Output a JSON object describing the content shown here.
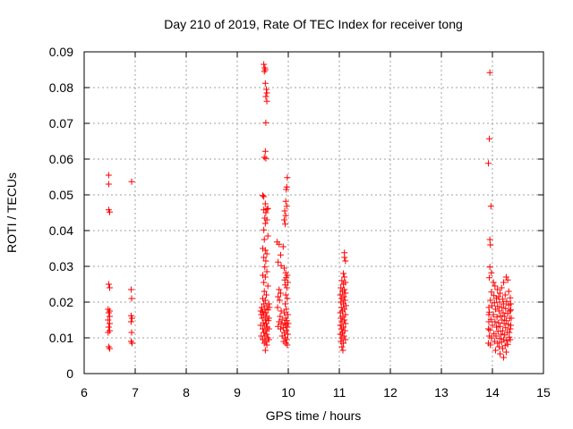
{
  "chart_data": {
    "type": "scatter",
    "title": "Day 210 of 2019, Rate Of TEC Index for receiver tong",
    "xlabel": "GPS time / hours",
    "ylabel": "ROTI / TECUs",
    "xlim": [
      6,
      15
    ],
    "ylim": [
      0,
      0.09
    ],
    "xticks": [
      6,
      7,
      8,
      9,
      10,
      11,
      12,
      13,
      14,
      15
    ],
    "yticks": [
      0,
      0.01,
      0.02,
      0.03,
      0.04,
      0.05,
      0.06,
      0.07,
      0.08,
      0.09
    ],
    "xtick_labels": [
      "6",
      "7",
      "8",
      "9",
      "10",
      "11",
      "12",
      "13",
      "14",
      "15"
    ],
    "ytick_labels": [
      "0",
      "0.01",
      "0.02",
      "0.03",
      "0.04",
      "0.05",
      "0.06",
      "0.07",
      "0.08",
      "0.09"
    ],
    "grid": true,
    "marker": "+",
    "color": "#ff0000",
    "series": [
      {
        "name": "ROTI",
        "points": [
          [
            6.48,
            0.0555
          ],
          [
            6.48,
            0.053
          ],
          [
            6.48,
            0.0458
          ],
          [
            6.5,
            0.0452
          ],
          [
            6.48,
            0.025
          ],
          [
            6.5,
            0.024
          ],
          [
            6.47,
            0.018
          ],
          [
            6.5,
            0.0175
          ],
          [
            6.48,
            0.017
          ],
          [
            6.5,
            0.016
          ],
          [
            6.47,
            0.015
          ],
          [
            6.5,
            0.014
          ],
          [
            6.48,
            0.013
          ],
          [
            6.5,
            0.012
          ],
          [
            6.47,
            0.0115
          ],
          [
            6.48,
            0.0075
          ],
          [
            6.5,
            0.007
          ],
          [
            6.93,
            0.0537
          ],
          [
            6.92,
            0.0235
          ],
          [
            6.93,
            0.021
          ],
          [
            6.92,
            0.0162
          ],
          [
            6.94,
            0.0155
          ],
          [
            6.92,
            0.0145
          ],
          [
            6.93,
            0.0115
          ],
          [
            6.92,
            0.009
          ],
          [
            6.94,
            0.0085
          ],
          [
            9.52,
            0.0865
          ],
          [
            9.54,
            0.0855
          ],
          [
            9.55,
            0.085
          ],
          [
            9.53,
            0.0845
          ],
          [
            9.55,
            0.0812
          ],
          [
            9.57,
            0.0795
          ],
          [
            9.58,
            0.0785
          ],
          [
            9.56,
            0.0775
          ],
          [
            9.58,
            0.0762
          ],
          [
            9.56,
            0.0702
          ],
          [
            9.55,
            0.0622
          ],
          [
            9.53,
            0.0605
          ],
          [
            9.56,
            0.0602
          ],
          [
            9.5,
            0.0498
          ],
          [
            9.52,
            0.0495
          ],
          [
            9.55,
            0.0475
          ],
          [
            9.58,
            0.046
          ],
          [
            9.52,
            0.0458
          ],
          [
            9.56,
            0.045
          ],
          [
            9.6,
            0.0462
          ],
          [
            9.54,
            0.0435
          ],
          [
            9.58,
            0.043
          ],
          [
            9.55,
            0.042
          ],
          [
            9.52,
            0.0402
          ],
          [
            9.6,
            0.0385
          ],
          [
            9.53,
            0.0375
          ],
          [
            9.5,
            0.035
          ],
          [
            9.55,
            0.0345
          ],
          [
            9.58,
            0.0335
          ],
          [
            9.52,
            0.0325
          ],
          [
            9.56,
            0.0315
          ],
          [
            9.54,
            0.0298
          ],
          [
            9.58,
            0.0285
          ],
          [
            9.5,
            0.0275
          ],
          [
            9.55,
            0.027
          ],
          [
            9.52,
            0.0255
          ],
          [
            9.6,
            0.0245
          ],
          [
            9.53,
            0.023
          ],
          [
            9.57,
            0.022
          ],
          [
            9.5,
            0.021
          ],
          [
            9.55,
            0.0205
          ],
          [
            9.52,
            0.0195
          ],
          [
            9.58,
            0.019
          ],
          [
            9.48,
            0.0185
          ],
          [
            9.54,
            0.018
          ],
          [
            9.6,
            0.0178
          ],
          [
            9.5,
            0.0172
          ],
          [
            9.56,
            0.017
          ],
          [
            9.52,
            0.0165
          ],
          [
            9.58,
            0.016
          ],
          [
            9.49,
            0.0155
          ],
          [
            9.55,
            0.015
          ],
          [
            9.61,
            0.0148
          ],
          [
            9.51,
            0.0142
          ],
          [
            9.57,
            0.014
          ],
          [
            9.53,
            0.0135
          ],
          [
            9.59,
            0.013
          ],
          [
            9.5,
            0.0125
          ],
          [
            9.56,
            0.012
          ],
          [
            9.52,
            0.0115
          ],
          [
            9.58,
            0.011
          ],
          [
            9.54,
            0.0105
          ],
          [
            9.6,
            0.01
          ],
          [
            9.5,
            0.0095
          ],
          [
            9.56,
            0.009
          ],
          [
            9.53,
            0.0085
          ],
          [
            9.58,
            0.008
          ],
          [
            9.55,
            0.0065
          ],
          [
            9.62,
            0.0195
          ],
          [
            9.63,
            0.0185
          ],
          [
            9.46,
            0.0175
          ],
          [
            9.47,
            0.0165
          ],
          [
            9.62,
            0.0155
          ],
          [
            9.46,
            0.0135
          ],
          [
            9.62,
            0.0125
          ],
          [
            9.47,
            0.0105
          ],
          [
            9.62,
            0.0095
          ],
          [
            9.98,
            0.0548
          ],
          [
            9.97,
            0.0522
          ],
          [
            9.96,
            0.0515
          ],
          [
            9.95,
            0.0482
          ],
          [
            9.97,
            0.0468
          ],
          [
            9.93,
            0.0455
          ],
          [
            9.95,
            0.0442
          ],
          [
            9.92,
            0.043
          ],
          [
            9.94,
            0.0418
          ],
          [
            9.78,
            0.0368
          ],
          [
            9.82,
            0.0362
          ],
          [
            9.9,
            0.0355
          ],
          [
            9.85,
            0.0332
          ],
          [
            9.8,
            0.0312
          ],
          [
            9.86,
            0.0302
          ],
          [
            9.92,
            0.0295
          ],
          [
            9.95,
            0.0282
          ],
          [
            9.98,
            0.0275
          ],
          [
            9.96,
            0.0268
          ],
          [
            9.93,
            0.0262
          ],
          [
            9.99,
            0.0255
          ],
          [
            9.94,
            0.0248
          ],
          [
            9.97,
            0.024
          ],
          [
            9.82,
            0.0235
          ],
          [
            9.85,
            0.0225
          ],
          [
            9.95,
            0.022
          ],
          [
            9.8,
            0.0215
          ],
          [
            9.98,
            0.021
          ],
          [
            9.83,
            0.0205
          ],
          [
            9.94,
            0.0195
          ],
          [
            9.79,
            0.0185
          ],
          [
            9.96,
            0.018
          ],
          [
            9.86,
            0.0175
          ],
          [
            9.92,
            0.017
          ],
          [
            9.99,
            0.0165
          ],
          [
            9.84,
            0.016
          ],
          [
            9.95,
            0.0155
          ],
          [
            9.88,
            0.015
          ],
          [
            9.97,
            0.0148
          ],
          [
            9.82,
            0.0145
          ],
          [
            9.93,
            0.0142
          ],
          [
            10.0,
            0.014
          ],
          [
            9.86,
            0.0138
          ],
          [
            9.95,
            0.0135
          ],
          [
            9.8,
            0.0132
          ],
          [
            9.98,
            0.013
          ],
          [
            9.9,
            0.0128
          ],
          [
            9.85,
            0.0125
          ],
          [
            9.96,
            0.012
          ],
          [
            9.92,
            0.0115
          ],
          [
            9.99,
            0.011
          ],
          [
            9.88,
            0.0105
          ],
          [
            9.94,
            0.01
          ],
          [
            9.97,
            0.0095
          ],
          [
            9.91,
            0.009
          ],
          [
            9.95,
            0.0085
          ],
          [
            9.98,
            0.008
          ],
          [
            11.1,
            0.0338
          ],
          [
            11.1,
            0.0325
          ],
          [
            11.12,
            0.0315
          ],
          [
            11.08,
            0.028
          ],
          [
            11.1,
            0.027
          ],
          [
            11.05,
            0.026
          ],
          [
            11.12,
            0.0255
          ],
          [
            11.08,
            0.025
          ],
          [
            11.03,
            0.024
          ],
          [
            11.1,
            0.0235
          ],
          [
            11.06,
            0.023
          ],
          [
            11.12,
            0.0225
          ],
          [
            11.02,
            0.022
          ],
          [
            11.09,
            0.0215
          ],
          [
            11.05,
            0.021
          ],
          [
            11.11,
            0.0205
          ],
          [
            11.03,
            0.02
          ],
          [
            11.08,
            0.0195
          ],
          [
            11.13,
            0.019
          ],
          [
            11.04,
            0.0185
          ],
          [
            11.1,
            0.018
          ],
          [
            11.06,
            0.0175
          ],
          [
            11.02,
            0.017
          ],
          [
            11.12,
            0.0165
          ],
          [
            11.07,
            0.016
          ],
          [
            11.03,
            0.0155
          ],
          [
            11.1,
            0.015
          ],
          [
            11.05,
            0.0145
          ],
          [
            11.12,
            0.014
          ],
          [
            11.02,
            0.0135
          ],
          [
            11.08,
            0.013
          ],
          [
            11.04,
            0.0125
          ],
          [
            11.11,
            0.012
          ],
          [
            11.06,
            0.0115
          ],
          [
            11.02,
            0.011
          ],
          [
            11.09,
            0.0105
          ],
          [
            11.05,
            0.01
          ],
          [
            11.12,
            0.0095
          ],
          [
            11.03,
            0.009
          ],
          [
            11.08,
            0.0085
          ],
          [
            11.05,
            0.0075
          ],
          [
            11.07,
            0.0065
          ],
          [
            13.95,
            0.0842
          ],
          [
            13.94,
            0.0657
          ],
          [
            13.92,
            0.0588
          ],
          [
            13.97,
            0.0468
          ],
          [
            13.95,
            0.0375
          ],
          [
            13.96,
            0.036
          ],
          [
            13.95,
            0.0298
          ],
          [
            13.98,
            0.0282
          ],
          [
            13.94,
            0.0268
          ],
          [
            14.02,
            0.0255
          ],
          [
            14.27,
            0.027
          ],
          [
            14.3,
            0.0262
          ],
          [
            14.22,
            0.0255
          ],
          [
            14.05,
            0.0245
          ],
          [
            14.18,
            0.024
          ],
          [
            14.1,
            0.0235
          ],
          [
            14.32,
            0.023
          ],
          [
            13.98,
            0.0228
          ],
          [
            14.15,
            0.0225
          ],
          [
            14.25,
            0.022
          ],
          [
            14.03,
            0.0218
          ],
          [
            14.12,
            0.0215
          ],
          [
            14.35,
            0.0212
          ],
          [
            14.08,
            0.021
          ],
          [
            14.2,
            0.0208
          ],
          [
            13.96,
            0.0205
          ],
          [
            14.28,
            0.0202
          ],
          [
            14.14,
            0.02
          ],
          [
            14.04,
            0.0198
          ],
          [
            14.22,
            0.0195
          ],
          [
            14.32,
            0.0192
          ],
          [
            13.99,
            0.019
          ],
          [
            14.1,
            0.0188
          ],
          [
            14.18,
            0.0185
          ],
          [
            14.26,
            0.0182
          ],
          [
            14.06,
            0.018
          ],
          [
            14.36,
            0.0178
          ],
          [
            14.13,
            0.0175
          ],
          [
            13.94,
            0.0172
          ],
          [
            14.21,
            0.017
          ],
          [
            14.3,
            0.0168
          ],
          [
            14.02,
            0.0165
          ],
          [
            14.16,
            0.0162
          ],
          [
            14.24,
            0.016
          ],
          [
            14.09,
            0.0158
          ],
          [
            14.34,
            0.0155
          ],
          [
            13.97,
            0.0152
          ],
          [
            14.19,
            0.015
          ],
          [
            14.27,
            0.0148
          ],
          [
            14.05,
            0.0145
          ],
          [
            14.12,
            0.0142
          ],
          [
            14.23,
            0.014
          ],
          [
            14.31,
            0.0138
          ],
          [
            14.0,
            0.0135
          ],
          [
            14.15,
            0.0132
          ],
          [
            14.08,
            0.013
          ],
          [
            14.26,
            0.0128
          ],
          [
            14.35,
            0.0125
          ],
          [
            13.95,
            0.0122
          ],
          [
            14.2,
            0.012
          ],
          [
            14.11,
            0.0118
          ],
          [
            14.29,
            0.0115
          ],
          [
            14.03,
            0.0112
          ],
          [
            14.17,
            0.011
          ],
          [
            14.24,
            0.0108
          ],
          [
            14.07,
            0.0105
          ],
          [
            14.33,
            0.0102
          ],
          [
            13.98,
            0.01
          ],
          [
            14.14,
            0.0098
          ],
          [
            14.22,
            0.0095
          ],
          [
            14.28,
            0.0092
          ],
          [
            14.04,
            0.009
          ],
          [
            14.18,
            0.0088
          ],
          [
            14.1,
            0.0085
          ],
          [
            14.3,
            0.0082
          ],
          [
            13.96,
            0.008
          ],
          [
            14.25,
            0.0078
          ],
          [
            14.13,
            0.0075
          ],
          [
            14.2,
            0.007
          ],
          [
            14.06,
            0.0065
          ],
          [
            14.27,
            0.006
          ],
          [
            14.15,
            0.0055
          ],
          [
            14.22,
            0.0045
          ],
          [
            14.36,
            0.0135
          ],
          [
            14.37,
            0.0155
          ],
          [
            14.34,
            0.0175
          ],
          [
            14.36,
            0.0195
          ],
          [
            14.33,
            0.0115
          ],
          [
            14.35,
            0.0095
          ],
          [
            13.93,
            0.0145
          ],
          [
            13.93,
            0.0165
          ],
          [
            13.92,
            0.0125
          ],
          [
            13.94,
            0.0105
          ],
          [
            13.93,
            0.0185
          ],
          [
            13.92,
            0.0085
          ]
        ]
      }
    ]
  }
}
